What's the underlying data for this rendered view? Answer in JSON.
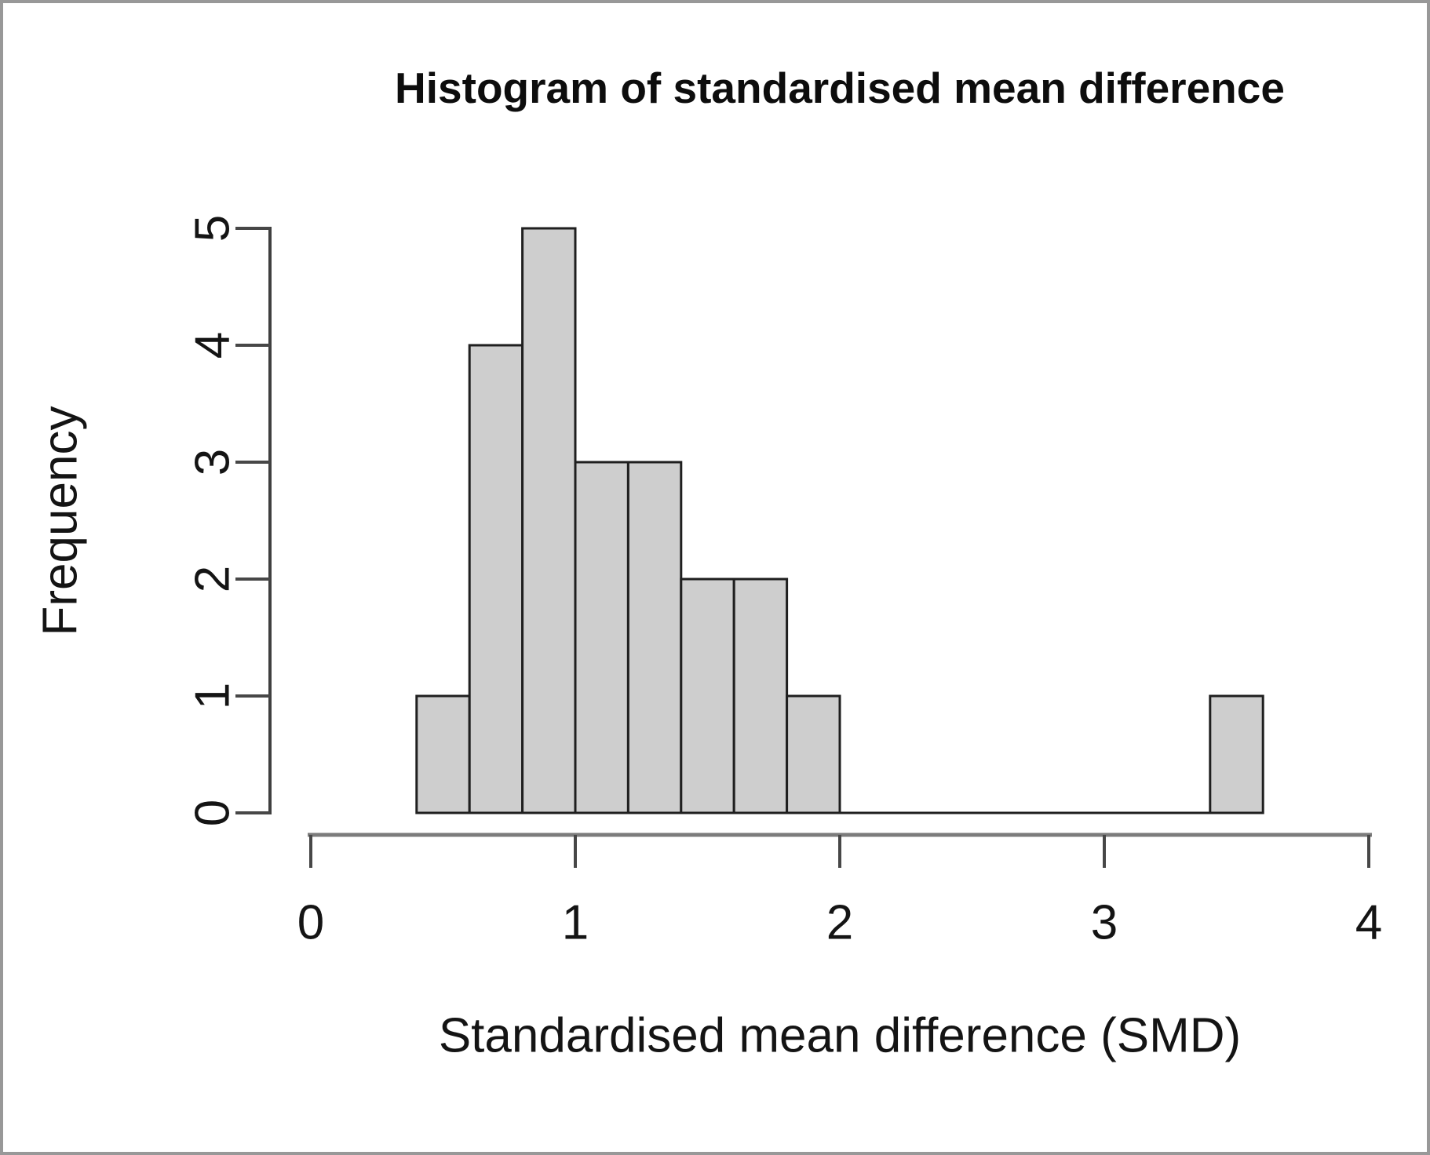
{
  "figure": {
    "background": "#ffffff",
    "border_color": "#989898"
  },
  "chart_data": {
    "type": "bar",
    "subtype": "histogram",
    "title": "Histogram of standardised mean difference",
    "xlabel": "Standardised mean difference (SMD)",
    "ylabel": "Frequency",
    "x_ticks": [
      0,
      1,
      2,
      3,
      4
    ],
    "y_ticks": [
      0,
      1,
      2,
      3,
      4,
      5
    ],
    "xlim": [
      0,
      4
    ],
    "ylim": [
      0,
      5
    ],
    "bin_width": 0.2,
    "bins": [
      {
        "from": 0.4,
        "to": 0.6,
        "count": 1
      },
      {
        "from": 0.6,
        "to": 0.8,
        "count": 4
      },
      {
        "from": 0.8,
        "to": 1.0,
        "count": 5
      },
      {
        "from": 1.0,
        "to": 1.2,
        "count": 3
      },
      {
        "from": 1.2,
        "to": 1.4,
        "count": 3
      },
      {
        "from": 1.4,
        "to": 1.6,
        "count": 2
      },
      {
        "from": 1.6,
        "to": 1.8,
        "count": 2
      },
      {
        "from": 1.8,
        "to": 2.0,
        "count": 1
      },
      {
        "from": 3.4,
        "to": 3.6,
        "count": 1
      }
    ],
    "grid": false,
    "legend": "none",
    "bar_fill": "#cecece",
    "bar_stroke": "#1f1f1f",
    "axis_color": "#3f3f3f",
    "x_axis_line_color": "#7c7c7c",
    "tick_color": "#474747",
    "text_color": "#141414"
  }
}
